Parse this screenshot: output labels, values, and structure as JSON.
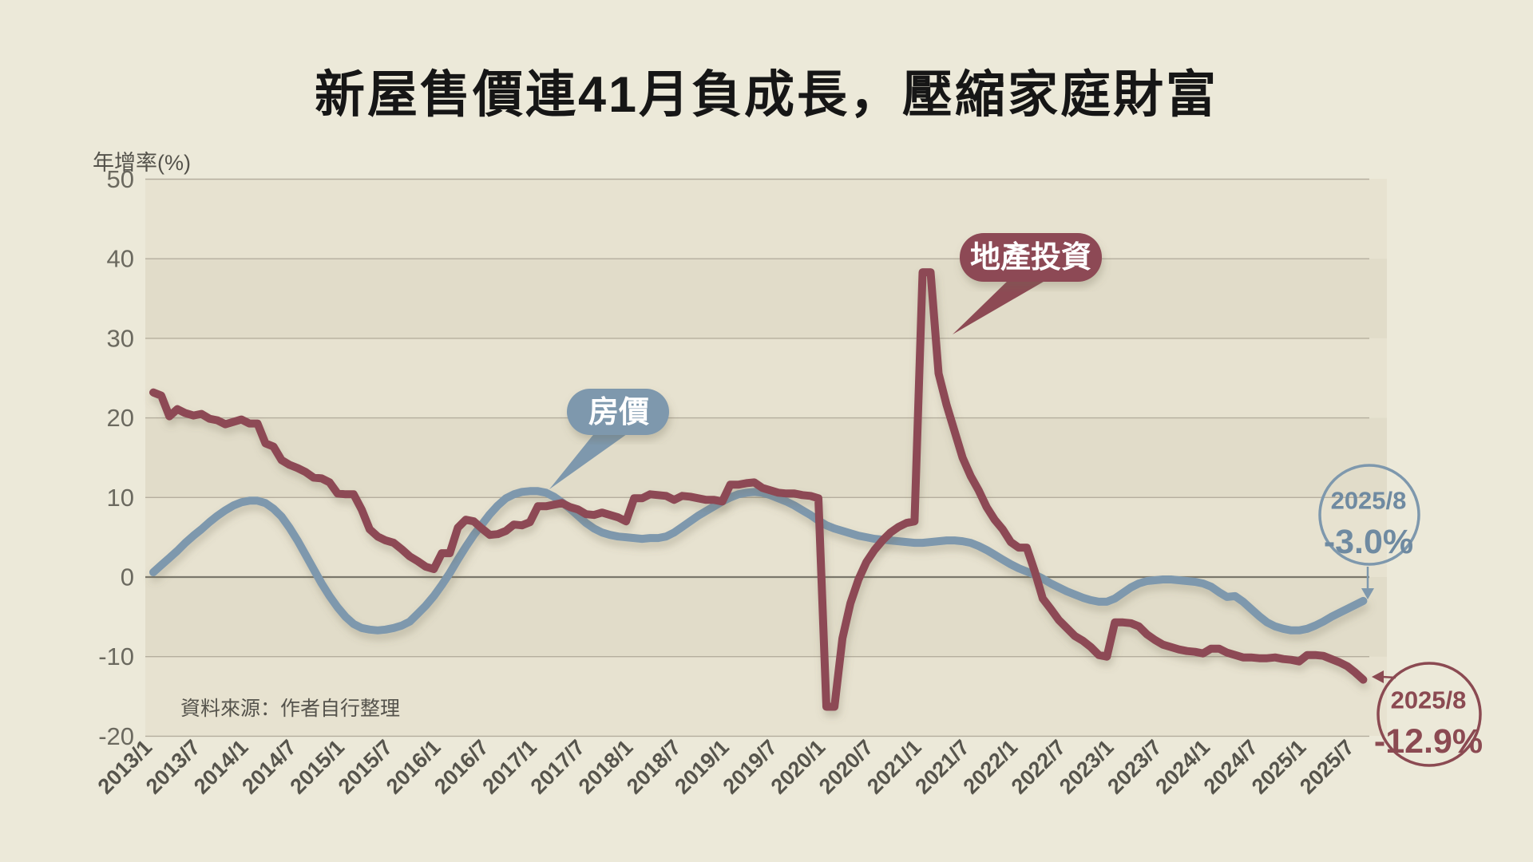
{
  "title": "新屋售價連41月負成長，壓縮家庭財富",
  "source_note": "資料來源：作者自行整理",
  "colors": {
    "background": "#ece9d9",
    "plot_background": "#e7e2d0",
    "gridline": "#b5ae9e",
    "zero_line": "#7a776b",
    "house_price_blue": "#7e98ad",
    "investment_maroon": "#8d4a54",
    "title_text": "#161616",
    "axis_text": "#6b695f"
  },
  "chart_data": {
    "type": "line",
    "title": "新屋售價連41月負成長，壓縮家庭財富",
    "y_axis_label": "年增率(%)",
    "x_start": "2013/1",
    "x_end": "2025/8",
    "x_interval": "monthly",
    "ylim": [
      -20,
      50
    ],
    "grid": true,
    "legend_position": "callout-bubbles-on-chart",
    "y_ticks": [
      50,
      40,
      30,
      20,
      10,
      0,
      -10,
      -20
    ],
    "x_tick_labels": [
      "2013/1",
      "2013/7",
      "2014/1",
      "2014/7",
      "2015/1",
      "2015/7",
      "2016/1",
      "2016/7",
      "2017/1",
      "2017/7",
      "2018/1",
      "2018/7",
      "2019/1",
      "2019/7",
      "2020/1",
      "2020/7",
      "2021/1",
      "2021/7",
      "2022/1",
      "2022/7",
      "2023/1",
      "2023/7",
      "2024/1",
      "2024/7",
      "2025/1",
      "2025/7"
    ],
    "series": [
      {
        "name": "房價",
        "color": "#7e98ad",
        "values": [
          0.6,
          1.5,
          2.4,
          3.3,
          4.3,
          5.2,
          6.0,
          6.9,
          7.7,
          8.4,
          9.0,
          9.4,
          9.6,
          9.6,
          9.3,
          8.6,
          7.6,
          6.2,
          4.6,
          2.8,
          1.0,
          -0.8,
          -2.4,
          -3.8,
          -5.0,
          -5.9,
          -6.4,
          -6.6,
          -6.7,
          -6.6,
          -6.4,
          -6.1,
          -5.6,
          -4.6,
          -3.6,
          -2.4,
          -1.0,
          0.5,
          2.2,
          3.8,
          5.3,
          6.6,
          7.9,
          9.0,
          9.9,
          10.4,
          10.7,
          10.8,
          10.8,
          10.6,
          10.1,
          9.4,
          8.6,
          7.7,
          6.8,
          6.1,
          5.6,
          5.3,
          5.1,
          5.0,
          4.9,
          4.8,
          4.9,
          4.9,
          5.1,
          5.6,
          6.3,
          7.0,
          7.7,
          8.3,
          8.9,
          9.5,
          10.0,
          10.4,
          10.6,
          10.7,
          10.6,
          10.3,
          9.9,
          9.5,
          9.0,
          8.4,
          7.8,
          7.1,
          6.5,
          6.1,
          5.8,
          5.5,
          5.2,
          5.0,
          4.8,
          4.7,
          4.6,
          4.5,
          4.4,
          4.3,
          4.3,
          4.4,
          4.5,
          4.6,
          4.6,
          4.5,
          4.3,
          3.9,
          3.4,
          2.8,
          2.2,
          1.6,
          1.1,
          0.7,
          0.3,
          -0.2,
          -0.8,
          -1.3,
          -1.8,
          -2.2,
          -2.6,
          -2.9,
          -3.1,
          -3.1,
          -2.7,
          -2.0,
          -1.3,
          -0.8,
          -0.5,
          -0.4,
          -0.3,
          -0.3,
          -0.4,
          -0.5,
          -0.6,
          -0.8,
          -1.2,
          -1.9,
          -2.5,
          -2.4,
          -3.1,
          -4.0,
          -4.9,
          -5.7,
          -6.2,
          -6.5,
          -6.7,
          -6.7,
          -6.5,
          -6.1,
          -5.6,
          -5.0,
          -4.5,
          -4.0,
          -3.5,
          -3.0
        ]
      },
      {
        "name": "地產投資",
        "color": "#8d4a54",
        "values": [
          23.2,
          22.8,
          20.2,
          21.1,
          20.6,
          20.3,
          20.5,
          19.9,
          19.7,
          19.2,
          19.5,
          19.8,
          19.3,
          19.3,
          16.8,
          16.4,
          14.7,
          14.1,
          13.7,
          13.2,
          12.5,
          12.4,
          11.9,
          10.5,
          10.4,
          10.4,
          8.5,
          6.0,
          5.1,
          4.6,
          4.3,
          3.5,
          2.6,
          2.0,
          1.3,
          1.0,
          3.0,
          3.0,
          6.2,
          7.2,
          7.0,
          6.1,
          5.3,
          5.4,
          5.8,
          6.6,
          6.5,
          6.9,
          8.9,
          8.9,
          9.1,
          9.3,
          8.8,
          8.5,
          7.9,
          7.8,
          8.1,
          7.8,
          7.5,
          7.0,
          9.9,
          9.9,
          10.4,
          10.3,
          10.2,
          9.7,
          10.2,
          10.1,
          9.9,
          9.7,
          9.7,
          9.5,
          11.6,
          11.6,
          11.8,
          11.9,
          11.2,
          10.9,
          10.6,
          10.5,
          10.5,
          10.3,
          10.2,
          9.9,
          -16.3,
          -16.3,
          -7.7,
          -3.3,
          -0.3,
          1.9,
          3.4,
          4.6,
          5.6,
          6.3,
          6.8,
          7.0,
          38.3,
          38.3,
          25.6,
          21.6,
          18.3,
          15.0,
          12.7,
          10.9,
          8.8,
          7.2,
          6.0,
          4.4,
          3.7,
          3.7,
          0.7,
          -2.7,
          -4.0,
          -5.4,
          -6.4,
          -7.4,
          -8.0,
          -8.8,
          -9.8,
          -10.0,
          -5.7,
          -5.7,
          -5.8,
          -6.2,
          -7.2,
          -7.9,
          -8.5,
          -8.8,
          -9.1,
          -9.3,
          -9.4,
          -9.6,
          -9.0,
          -9.0,
          -9.5,
          -9.8,
          -10.1,
          -10.1,
          -10.2,
          -10.2,
          -10.1,
          -10.3,
          -10.4,
          -10.6,
          -9.8,
          -9.8,
          -9.9,
          -10.3,
          -10.7,
          -11.2,
          -12.0,
          -12.9
        ]
      }
    ],
    "annotations": {
      "blue_endpoint": {
        "date": "2025/8",
        "value": "-3.0%"
      },
      "red_endpoint": {
        "date": "2025/8",
        "value": "-12.9%"
      }
    }
  }
}
